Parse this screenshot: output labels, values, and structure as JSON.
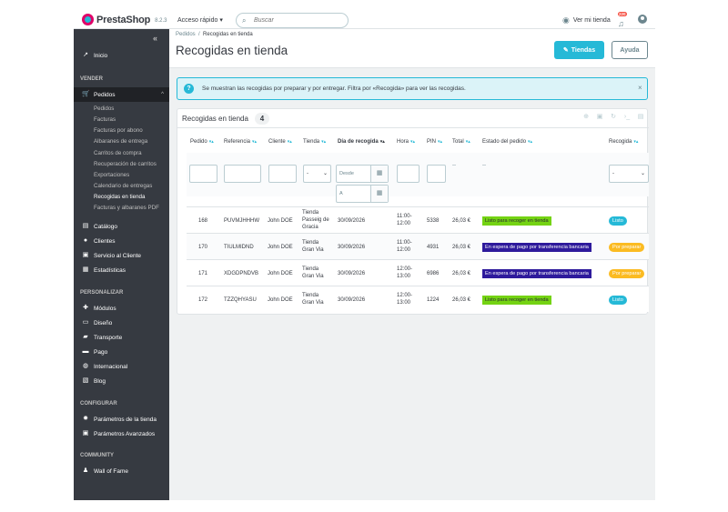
{
  "topbar": {
    "brand": "PrestaShop",
    "version": "8.2.3",
    "quick_access": "Acceso rápido",
    "search_placeholder": "Buscar",
    "view_shop": "Ver mi tienda",
    "notif_count": "220"
  },
  "sidebar": {
    "collapse_icon": "double-chevron-left-icon",
    "inicio": "Inicio",
    "sec_vender": "VENDER",
    "pedidos": "Pedidos",
    "sub": [
      "Pedidos",
      "Facturas",
      "Facturas por abono",
      "Albaranes de entrega",
      "Carritos de compra",
      "Recuperación de carritos",
      "Exportaciones",
      "Calendario de entregas",
      "Recogidas en tienda",
      "Facturas y albaranes PDF"
    ],
    "catalogo": "Catálogo",
    "clientes": "Clientes",
    "servicio": "Servicio al Cliente",
    "estadisticas": "Estadísticas",
    "sec_personalizar": "PERSONALIZAR",
    "modulos": "Módulos",
    "diseno": "Diseño",
    "transporte": "Transporte",
    "pago": "Pago",
    "internacional": "Internacional",
    "blog": "Blog",
    "sec_configurar": "CONFIGURAR",
    "param_tienda": "Parámetros de la tienda",
    "param_avanzados": "Parámetros Avanzados",
    "sec_community": "COMMUNITY",
    "wall": "Wall of Fame"
  },
  "header": {
    "breadcrumb_parent": "Pedidos",
    "breadcrumb_current": "Recogidas en tienda",
    "title": "Recogidas en tienda",
    "btn_tiendas": "Tiendas",
    "btn_ayuda": "Ayuda"
  },
  "alert": {
    "text": "Se muestran las recogidas por preparar y por entregar. Filtra por «Recogida» para ver las recogidas."
  },
  "table": {
    "title": "Recogidas en tienda",
    "count": "4",
    "columns": [
      "Pedido",
      "Referencia",
      "Cliente",
      "Tienda",
      "Día de recogida",
      "Hora",
      "PIN",
      "Total",
      "Estado del pedido",
      "Recogida"
    ],
    "filter": {
      "tienda_select": "-",
      "desde": "Desde",
      "hasta": "A",
      "total_dash": "--",
      "estado_dash": "--",
      "recogida_select": "-"
    },
    "rows": [
      {
        "pedido": "168",
        "ref": "PUVMJHHHW",
        "cliente": "John DOE",
        "tienda": "Tienda Passeig de Gracia",
        "dia": "30/09/2026",
        "hora": "11:00-12:00",
        "pin": "5338",
        "total": "26,03 €",
        "estado": "Listo para recoger en tienda",
        "recogida": "Listo"
      },
      {
        "pedido": "170",
        "ref": "TIULMIDND",
        "cliente": "John DOE",
        "tienda": "Tienda Gran Via",
        "dia": "30/09/2026",
        "hora": "11:00-12:00",
        "pin": "4931",
        "total": "26,03 €",
        "estado": "En espera de pago por transferencia bancaria",
        "recogida": "Por preparar"
      },
      {
        "pedido": "171",
        "ref": "XDGDPNDVB",
        "cliente": "John DOE",
        "tienda": "Tienda Gran Via",
        "dia": "30/09/2026",
        "hora": "12:00-13:00",
        "pin": "6986",
        "total": "26,03 €",
        "estado": "En espera de pago por transferencia bancaria",
        "recogida": "Por preparar"
      },
      {
        "pedido": "172",
        "ref": "TZZQHYASU",
        "cliente": "John DOE",
        "tienda": "Tienda Gran Via",
        "dia": "30/09/2026",
        "hora": "12:00-13:00",
        "pin": "1224",
        "total": "26,03 €",
        "estado": "Listo para recoger en tienda",
        "recogida": "Listo"
      }
    ]
  },
  "colors": {
    "accent": "#25b9d7",
    "sidebar": "#363a41",
    "status_green": "#74d313",
    "status_navy": "#2e1a9c",
    "pill_orange": "#fbbb22"
  }
}
